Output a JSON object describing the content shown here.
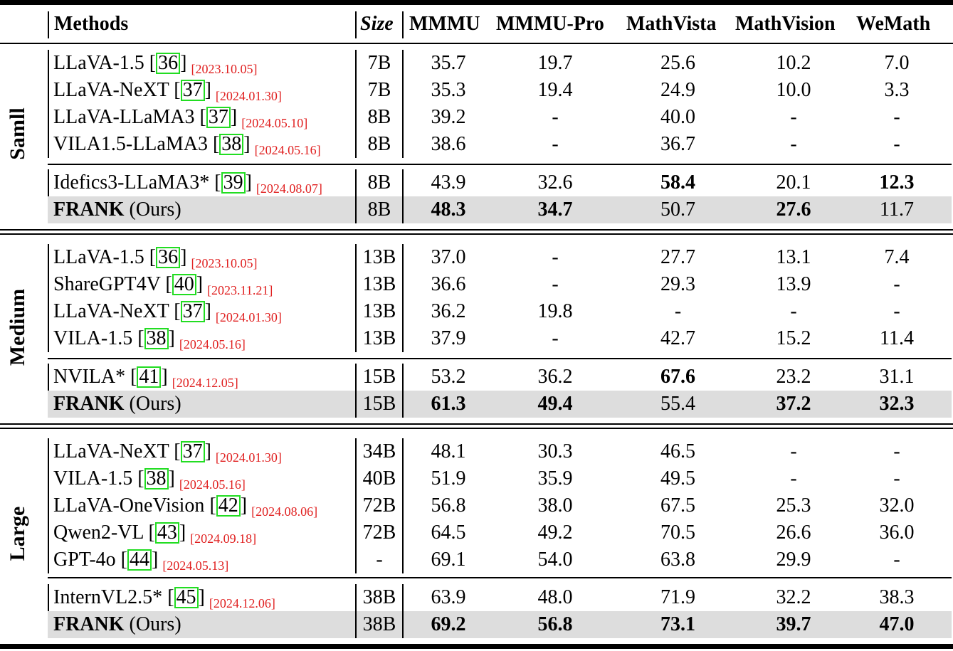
{
  "table": {
    "columns": [
      "Methods",
      "Size",
      "MMMU",
      "MMMU-Pro",
      "MathVista",
      "MathVision",
      "WeMath"
    ],
    "groups": [
      {
        "label": "Samll",
        "baselines": [
          {
            "method": "LLaVA-1.5",
            "cite": "36",
            "date": "[2023.10.05]",
            "size": "7B",
            "values": [
              "35.7",
              "19.7",
              "25.6",
              "10.2",
              "7.0"
            ]
          },
          {
            "method": "LLaVA-NeXT",
            "cite": "37",
            "date": "[2024.01.30]",
            "size": "7B",
            "values": [
              "35.3",
              "19.4",
              "24.9",
              "10.0",
              "3.3"
            ]
          },
          {
            "method": "LLaVA-LLaMA3",
            "cite": "37",
            "date": "[2024.05.10]",
            "size": "8B",
            "values": [
              "39.2",
              "-",
              "40.0",
              "-",
              "-"
            ]
          },
          {
            "method": "VILA1.5-LLaMA3",
            "cite": "38",
            "date": "[2024.05.16]",
            "size": "8B",
            "values": [
              "38.6",
              "-",
              "36.7",
              "-",
              "-"
            ]
          }
        ],
        "reference": {
          "method": "Idefics3-LLaMA3*",
          "cite": "39",
          "date": "[2024.08.07]",
          "size": "8B",
          "values": [
            "43.9",
            "32.6",
            "58.4",
            "20.1",
            "12.3"
          ],
          "bold": [
            false,
            false,
            true,
            false,
            true
          ]
        },
        "ours": {
          "method_bold": "FRANK",
          "method_rest": " (Ours)",
          "size": "8B",
          "values": [
            "48.3",
            "34.7",
            "50.7",
            "27.6",
            "11.7"
          ],
          "bold": [
            true,
            true,
            false,
            true,
            false
          ]
        }
      },
      {
        "label": "Medium",
        "baselines": [
          {
            "method": "LLaVA-1.5",
            "cite": "36",
            "date": "[2023.10.05]",
            "size": "13B",
            "values": [
              "37.0",
              "-",
              "27.7",
              "13.1",
              "7.4"
            ]
          },
          {
            "method": "ShareGPT4V",
            "cite": "40",
            "date": "[2023.11.21]",
            "size": "13B",
            "values": [
              "36.6",
              "-",
              "29.3",
              "13.9",
              "-"
            ]
          },
          {
            "method": "LLaVA-NeXT",
            "cite": "37",
            "date": "[2024.01.30]",
            "size": "13B",
            "values": [
              "36.2",
              "19.8",
              "-",
              "-",
              "-"
            ]
          },
          {
            "method": "VILA-1.5",
            "cite": "38",
            "date": "[2024.05.16]",
            "size": "13B",
            "values": [
              "37.9",
              "-",
              "42.7",
              "15.2",
              "11.4"
            ]
          }
        ],
        "reference": {
          "method": "NVILA*",
          "cite": "41",
          "date": "[2024.12.05]",
          "size": "15B",
          "values": [
            "53.2",
            "36.2",
            "67.6",
            "23.2",
            "31.1"
          ],
          "bold": [
            false,
            false,
            true,
            false,
            false
          ]
        },
        "ours": {
          "method_bold": "FRANK",
          "method_rest": " (Ours)",
          "size": "15B",
          "values": [
            "61.3",
            "49.4",
            "55.4",
            "37.2",
            "32.3"
          ],
          "bold": [
            true,
            true,
            false,
            true,
            true
          ]
        }
      },
      {
        "label": "Large",
        "baselines": [
          {
            "method": "LLaVA-NeXT",
            "cite": "37",
            "date": "[2024.01.30]",
            "size": "34B",
            "values": [
              "48.1",
              "30.3",
              "46.5",
              "-",
              "-"
            ]
          },
          {
            "method": "VILA-1.5",
            "cite": "38",
            "date": "[2024.05.16]",
            "size": "40B",
            "values": [
              "51.9",
              "35.9",
              "49.5",
              "-",
              "-"
            ]
          },
          {
            "method": "LLaVA-OneVision",
            "cite": "42",
            "date": "[2024.08.06]",
            "size": "72B",
            "values": [
              "56.8",
              "38.0",
              "67.5",
              "25.3",
              "32.0"
            ]
          },
          {
            "method": "Qwen2-VL",
            "cite": "43",
            "date": "[2024.09.18]",
            "size": "72B",
            "values": [
              "64.5",
              "49.2",
              "70.5",
              "26.6",
              "36.0"
            ]
          },
          {
            "method": "GPT-4o",
            "cite": "44",
            "date": "[2024.05.13]",
            "size": "-",
            "values": [
              "69.1",
              "54.0",
              "63.8",
              "29.9",
              "-"
            ]
          }
        ],
        "reference": {
          "method": "InternVL2.5*",
          "cite": "45",
          "date": "[2024.12.06]",
          "size": "38B",
          "values": [
            "63.9",
            "48.0",
            "71.9",
            "32.2",
            "38.3"
          ],
          "bold": [
            false,
            false,
            false,
            false,
            false
          ]
        },
        "ours": {
          "method_bold": "FRANK",
          "method_rest": " (Ours)",
          "size": "38B",
          "values": [
            "69.2",
            "56.8",
            "73.1",
            "39.7",
            "47.0"
          ],
          "bold": [
            true,
            true,
            true,
            true,
            true
          ]
        }
      }
    ]
  }
}
